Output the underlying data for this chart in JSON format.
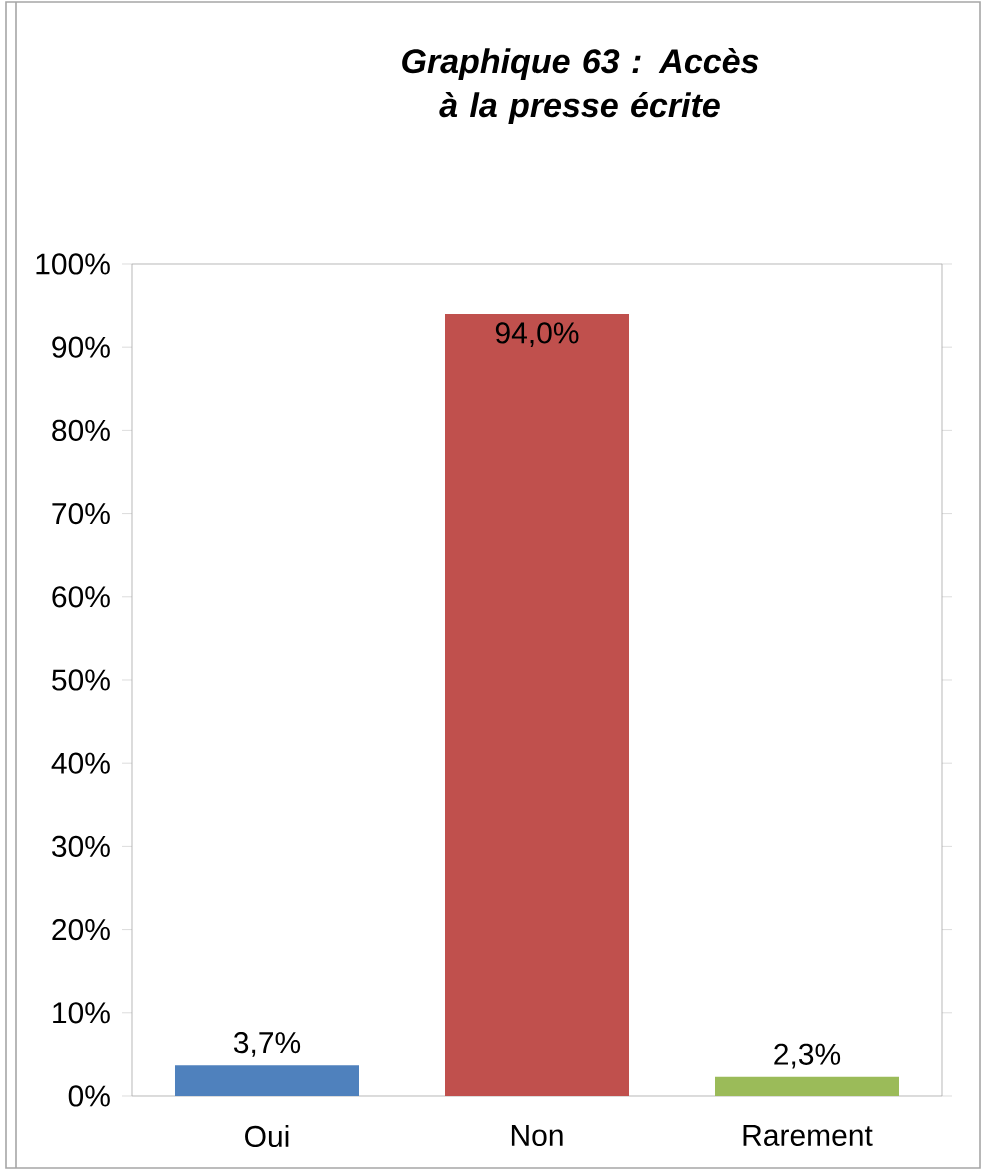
{
  "chart_data": {
    "type": "bar",
    "title": "Graphique 63 : Accès à la presse écrite",
    "categories": [
      "Oui",
      "Non",
      "Rarement"
    ],
    "values": [
      3.7,
      94.0,
      2.3
    ],
    "colors": [
      "#4f81bd",
      "#c0504d",
      "#9bbb59"
    ],
    "value_labels": [
      "3,7%",
      "94,0%",
      "2,3%"
    ],
    "ylim": [
      0,
      100
    ],
    "yticks": [
      {
        "value": 0,
        "label": "0%"
      },
      {
        "value": 10,
        "label": "10%"
      },
      {
        "value": 20,
        "label": "20%"
      },
      {
        "value": 30,
        "label": "30%"
      },
      {
        "value": 40,
        "label": "40%"
      },
      {
        "value": 50,
        "label": "50%"
      },
      {
        "value": 60,
        "label": "60%"
      },
      {
        "value": 70,
        "label": "70%"
      },
      {
        "value": 80,
        "label": "80%"
      },
      {
        "value": 90,
        "label": "90%"
      },
      {
        "value": 100,
        "label": "100%"
      }
    ]
  }
}
